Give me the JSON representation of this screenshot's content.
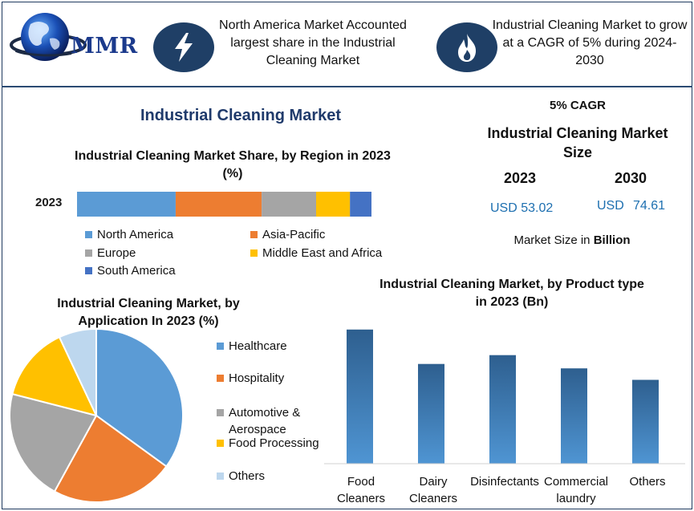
{
  "logo": {
    "text": "MMR"
  },
  "header": {
    "note_left": "North America Market Accounted largest share in the Industrial Cleaning Market",
    "note_right": "Industrial Cleaning Market to grow at a CAGR of 5% during 2024-2030",
    "icon_left": "lightning-bolt-icon",
    "icon_right": "flame-icon"
  },
  "main_title": "Industrial Cleaning Market",
  "stats": {
    "cagr": "5% CAGR",
    "size_title": "Industrial Cleaning Market Size",
    "year_a": "2023",
    "year_b": "2030",
    "value_a": "USD 53.02",
    "value_b_prefix": "USD",
    "value_b": "74.61",
    "unit_prefix": "Market Size in",
    "unit_word": "Billion"
  },
  "colors": {
    "north_america": "#5b9bd5",
    "asia_pacific": "#ed7d31",
    "europe": "#a5a5a5",
    "middle_east": "#ffc000",
    "south_america": "#4472c4",
    "others": "#bdd7ee",
    "bar_top": "#2e5f8f",
    "bar_bottom": "#4f95d3",
    "navy": "#1f3f66"
  },
  "chart_data": [
    {
      "type": "bar",
      "orientation": "horizontal-stacked",
      "title": "Industrial Cleaning Market Share, by Region in 2023 (%)",
      "categories": [
        "2023"
      ],
      "series": [
        {
          "name": "North America",
          "values": [
            33.5
          ]
        },
        {
          "name": "Asia-Pacific",
          "values": [
            29.2
          ]
        },
        {
          "name": "Europe",
          "values": [
            18.5
          ]
        },
        {
          "name": "Middle East and Africa",
          "values": [
            11.5
          ]
        },
        {
          "name": "South America",
          "values": [
            7.3
          ]
        }
      ],
      "legend": "bottom"
    },
    {
      "type": "pie",
      "title": "Industrial Cleaning Market, by Application In 2023 (%)",
      "labels": [
        "Healthcare",
        "Hospitality",
        "Automotive & Aerospace",
        "Food Processing",
        "Others"
      ],
      "values": [
        35,
        23,
        21,
        14,
        7
      ],
      "legend": "right"
    },
    {
      "type": "bar",
      "title": "Industrial Cleaning Market, by Product type in 2023 (Bn)",
      "categories": [
        [
          "Food",
          "Cleaners"
        ],
        [
          "Dairy",
          "Cleaners"
        ],
        [
          "Disinfectants"
        ],
        [
          "Commercial",
          "laundry"
        ],
        [
          "Others"
        ]
      ],
      "values": [
        15.2,
        11.3,
        12.3,
        10.8,
        9.5
      ],
      "ylim": [
        0,
        16
      ],
      "legend": "none",
      "grid": false
    }
  ]
}
